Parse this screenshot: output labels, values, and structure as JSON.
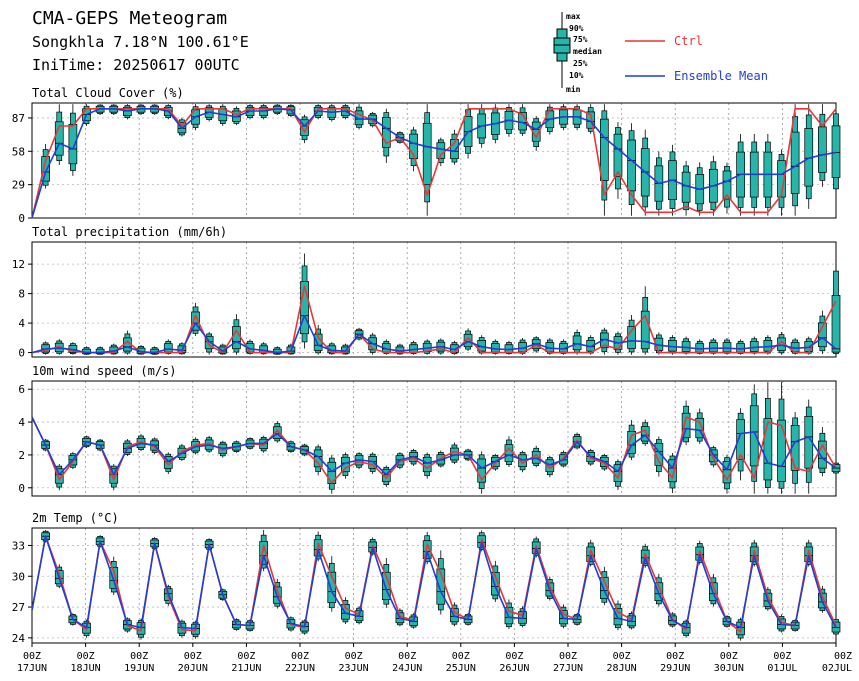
{
  "header": {
    "title": "CMA-GEPS Meteogram",
    "location": "Songkhla 7.18°N 100.61°E",
    "init_time": "IniTime: 20250617 00UTC"
  },
  "legend": {
    "box_labels": [
      "max",
      "90%",
      "75%",
      "median",
      "25%",
      "10%",
      "min"
    ],
    "ctrl_label": "Ctrl",
    "mean_label": "Ensemble Mean",
    "ctrl_color": "#e8373a",
    "mean_color": "#1f3fd6",
    "box_color": "#26b5a8"
  },
  "x_axis": {
    "hours": [
      "00Z",
      "00Z",
      "00Z",
      "00Z",
      "00Z",
      "00Z",
      "00Z",
      "00Z",
      "00Z",
      "00Z",
      "00Z",
      "00Z",
      "00Z",
      "00Z",
      "00Z",
      "00Z"
    ],
    "dates": [
      "17JUN",
      "18JUN",
      "19JUN",
      "20JUN",
      "21JUN",
      "22JUN",
      "23JUN",
      "24JUN",
      "25JUN",
      "26JUN",
      "27JUN",
      "28JUN",
      "29JUN",
      "30JUN",
      "01JUL",
      "02JUL"
    ]
  },
  "chart_data": [
    {
      "type": "line",
      "title": "Total Cloud Cover (%)",
      "ylim": [
        0,
        100
      ],
      "yticks": [
        0,
        29,
        58,
        87
      ],
      "series": [
        {
          "name": "Ctrl",
          "values": [
            0,
            50,
            80,
            80,
            95,
            95,
            95,
            95,
            95,
            95,
            95,
            80,
            95,
            95,
            95,
            90,
            95,
            95,
            95,
            95,
            75,
            95,
            95,
            95,
            90,
            85,
            65,
            70,
            55,
            20,
            55,
            65,
            95,
            95,
            95,
            95,
            90,
            70,
            95,
            95,
            95,
            90,
            20,
            40,
            20,
            5,
            5,
            5,
            10,
            5,
            5,
            20,
            5,
            5,
            5,
            20,
            95,
            95,
            80,
            95
          ]
        },
        {
          "name": "Ensemble Mean",
          "values": [
            0,
            40,
            65,
            60,
            90,
            95,
            95,
            93,
            95,
            95,
            93,
            78,
            88,
            92,
            90,
            88,
            93,
            93,
            95,
            94,
            80,
            93,
            92,
            93,
            86,
            86,
            78,
            70,
            65,
            62,
            60,
            58,
            75,
            80,
            82,
            85,
            83,
            77,
            86,
            88,
            88,
            84,
            70,
            60,
            50,
            40,
            30,
            33,
            28,
            25,
            28,
            32,
            38,
            38,
            38,
            38,
            45,
            52,
            55,
            57
          ]
        }
      ]
    },
    {
      "type": "line",
      "title": "Total precipitation (mm/6h)",
      "ylim": [
        -0.6,
        15
      ],
      "yticks": [
        0,
        4,
        8,
        12
      ],
      "series": [
        {
          "name": "Ctrl",
          "values": [
            0,
            0.3,
            0.8,
            0.2,
            0,
            0,
            0,
            1.5,
            0,
            0,
            0,
            0,
            5,
            1,
            0,
            3,
            0,
            0,
            0,
            0,
            9,
            2,
            0,
            0,
            2.5,
            0.5,
            0,
            0,
            0,
            0.2,
            0.5,
            0,
            2,
            0,
            0,
            0,
            0,
            1,
            0,
            0,
            0,
            0,
            1,
            0.5,
            3,
            5,
            0,
            0,
            0,
            0,
            0,
            0,
            0,
            0,
            0,
            1.5,
            0,
            0,
            3.5,
            7
          ]
        },
        {
          "name": "Ensemble Mean",
          "values": [
            0,
            0.5,
            0.6,
            0.4,
            0,
            0,
            0.2,
            0.8,
            0.1,
            0,
            0.5,
            0.3,
            4,
            1.5,
            0.2,
            1.5,
            0.5,
            0.3,
            0,
            0.2,
            5,
            1,
            0.3,
            0.2,
            2.5,
            1.2,
            0.5,
            0.2,
            0.4,
            0.6,
            0.8,
            0.4,
            1.5,
            0.8,
            0.5,
            0.4,
            0.6,
            1.2,
            0.6,
            0.5,
            1.2,
            0.8,
            1.8,
            1.3,
            1.6,
            1.5,
            1,
            0.8,
            0.7,
            0.5,
            0.6,
            0.6,
            0.5,
            0.7,
            0.8,
            1,
            0.6,
            0.7,
            2,
            0.5
          ]
        }
      ]
    },
    {
      "type": "line",
      "title": "10m wind speed (m/s)",
      "ylim": [
        -0.5,
        6.5
      ],
      "yticks": [
        0,
        2,
        4,
        6
      ],
      "series": [
        {
          "name": "Ctrl",
          "values": [
            4.3,
            2.6,
            0.5,
            1.6,
            2.8,
            2.6,
            0.5,
            2.5,
            2.8,
            2.5,
            1.4,
            2.2,
            2.6,
            2.7,
            2.3,
            2.5,
            2.7,
            2.6,
            3.5,
            2.5,
            2.3,
            1.5,
            0.3,
            1.2,
            1.6,
            1.4,
            0.6,
            1.6,
            1.8,
            1.2,
            1.8,
            2.2,
            2.0,
            0.5,
            1.5,
            2.4,
            1.5,
            2.0,
            1.2,
            1.8,
            2.9,
            1.8,
            1.5,
            0.6,
            3.2,
            3.5,
            1.6,
            0.6,
            4.3,
            4.0,
            1.8,
            0.5,
            2.0,
            0.6,
            4.0,
            3.8,
            1.2,
            1.0,
            2.6,
            1.2
          ]
        },
        {
          "name": "Ensemble Mean",
          "values": [
            4.3,
            2.6,
            0.8,
            1.7,
            2.8,
            2.6,
            0.8,
            2.4,
            2.7,
            2.6,
            1.6,
            2.1,
            2.5,
            2.6,
            2.4,
            2.5,
            2.7,
            2.7,
            3.3,
            2.5,
            2.3,
            1.9,
            1.0,
            1.5,
            1.7,
            1.6,
            0.8,
            1.7,
            1.9,
            1.5,
            1.7,
            2.0,
            2.0,
            1.2,
            1.6,
            2.0,
            1.7,
            1.8,
            1.4,
            1.7,
            2.8,
            1.9,
            1.6,
            1.0,
            2.6,
            3.2,
            2.2,
            1.2,
            3.6,
            3.5,
            2.0,
            1.1,
            3.3,
            3.4,
            1.5,
            1.3,
            2.8,
            3.1,
            1.8,
            1.2
          ]
        }
      ]
    },
    {
      "type": "line",
      "title": "2m Temp (°C)",
      "ylim": [
        23.5,
        34.7
      ],
      "yticks": [
        24,
        27,
        30,
        33
      ],
      "series": [
        {
          "name": "Ctrl",
          "values": [
            26.7,
            33.9,
            30.2,
            25.8,
            24.8,
            33.4,
            30.5,
            25.2,
            24.7,
            33.2,
            28.0,
            24.8,
            24.7,
            33.1,
            28.2,
            25.3,
            25.2,
            33.0,
            28.6,
            25.3,
            25.0,
            33.2,
            30.0,
            26.9,
            26.3,
            33.0,
            30.0,
            26.1,
            25.7,
            33.1,
            30.3,
            26.5,
            25.8,
            33.6,
            30.0,
            26.6,
            26.2,
            33.0,
            29.0,
            26.3,
            25.8,
            32.5,
            29.5,
            26.5,
            25.8,
            32.2,
            29.0,
            25.8,
            24.8,
            32.5,
            29.0,
            25.6,
            24.6,
            32.5,
            28.0,
            25.5,
            25.2,
            32.5,
            28.0,
            25.2
          ]
        },
        {
          "name": "Ensemble Mean",
          "values": [
            26.7,
            33.9,
            29.8,
            25.8,
            25.0,
            33.4,
            29.6,
            25.3,
            25.0,
            33.2,
            28.3,
            25.0,
            24.9,
            33.1,
            28.2,
            25.3,
            25.2,
            32.0,
            28.0,
            25.4,
            25.1,
            32.6,
            28.5,
            26.4,
            26.1,
            32.8,
            28.7,
            25.9,
            25.6,
            32.4,
            28.5,
            26.1,
            25.8,
            33.3,
            29.0,
            26.0,
            25.9,
            32.7,
            28.6,
            25.9,
            25.8,
            32.0,
            28.6,
            25.9,
            25.6,
            31.8,
            28.3,
            25.7,
            25.0,
            32.1,
            28.3,
            25.6,
            25.0,
            32.0,
            27.6,
            25.3,
            25.2,
            32.0,
            27.5,
            25.0
          ]
        }
      ]
    }
  ]
}
